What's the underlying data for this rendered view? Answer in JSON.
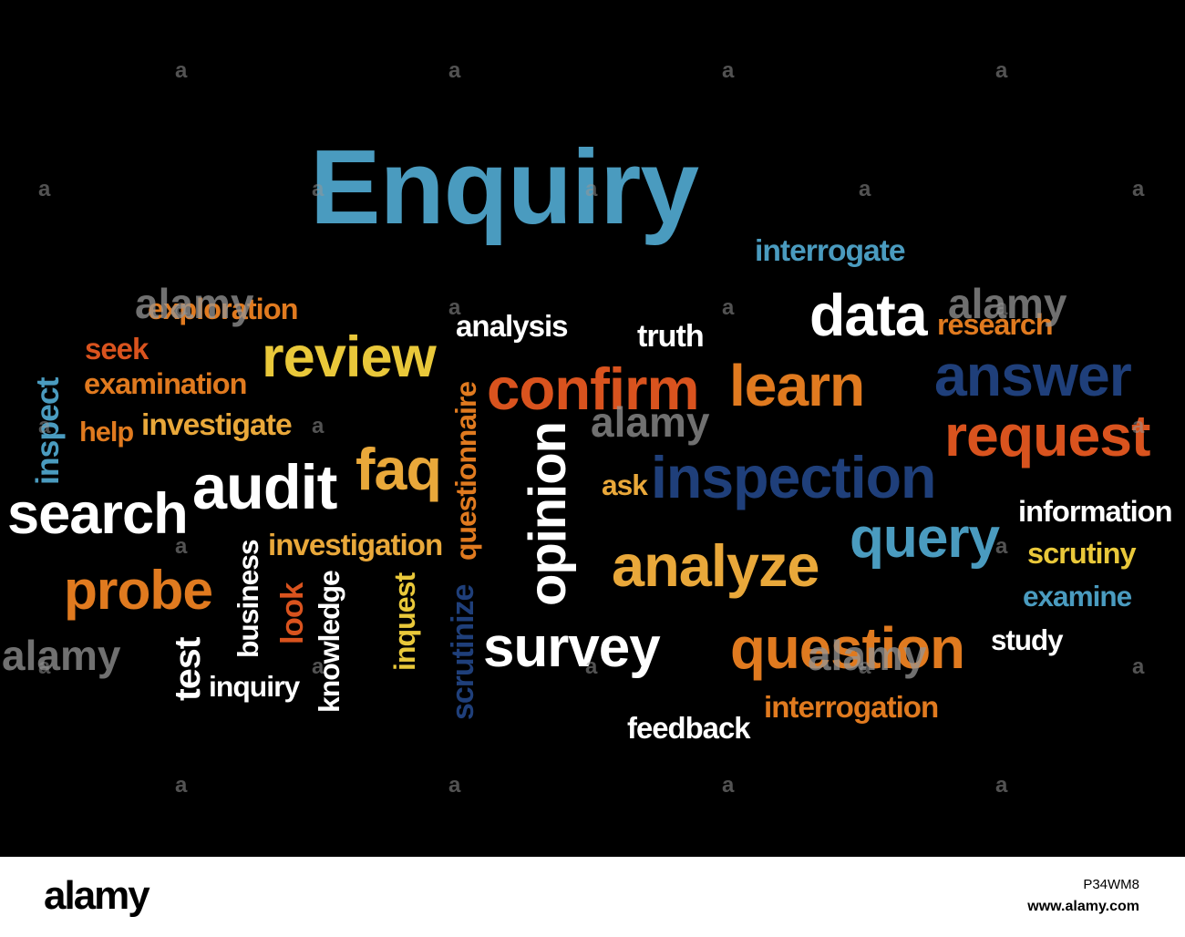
{
  "words": [
    {
      "text": "Enquiry",
      "color": "#4a9bbf"
    },
    {
      "text": "interrogate",
      "color": "#4a9bbf"
    },
    {
      "text": "exploration",
      "color": "#e07a1f"
    },
    {
      "text": "analysis",
      "color": "#ffffff"
    },
    {
      "text": "truth",
      "color": "#ffffff"
    },
    {
      "text": "data",
      "color": "#ffffff"
    },
    {
      "text": "research",
      "color": "#e07a1f"
    },
    {
      "text": "seek",
      "color": "#d9531e"
    },
    {
      "text": "review",
      "color": "#e9c83a"
    },
    {
      "text": "examination",
      "color": "#e07a1f"
    },
    {
      "text": "confirm",
      "color": "#d9531e"
    },
    {
      "text": "learn",
      "color": "#e07a1f"
    },
    {
      "text": "answer",
      "color": "#1f3f7a"
    },
    {
      "text": "inspect",
      "color": "#4a9bbf"
    },
    {
      "text": "help",
      "color": "#e07a1f"
    },
    {
      "text": "investigate",
      "color": "#e9a83a"
    },
    {
      "text": "request",
      "color": "#d9531e"
    },
    {
      "text": "faq",
      "color": "#e9a83a"
    },
    {
      "text": "questionnaire",
      "color": "#e07a1f"
    },
    {
      "text": "opinion",
      "color": "#ffffff"
    },
    {
      "text": "audit",
      "color": "#ffffff"
    },
    {
      "text": "search",
      "color": "#ffffff"
    },
    {
      "text": "ask",
      "color": "#e9a83a"
    },
    {
      "text": "inspection",
      "color": "#1f3f7a"
    },
    {
      "text": "information",
      "color": "#ffffff"
    },
    {
      "text": "investigation",
      "color": "#e9a83a"
    },
    {
      "text": "query",
      "color": "#4a9bbf"
    },
    {
      "text": "scrutiny",
      "color": "#e9c83a"
    },
    {
      "text": "business",
      "color": "#ffffff"
    },
    {
      "text": "analyze",
      "color": "#e9a83a"
    },
    {
      "text": "probe",
      "color": "#e07a1f"
    },
    {
      "text": "examine",
      "color": "#4a9bbf"
    },
    {
      "text": "look",
      "color": "#d9531e"
    },
    {
      "text": "knowledge",
      "color": "#ffffff"
    },
    {
      "text": "inquest",
      "color": "#e9c83a"
    },
    {
      "text": "scrutinize",
      "color": "#1f3f7a"
    },
    {
      "text": "survey",
      "color": "#ffffff"
    },
    {
      "text": "question",
      "color": "#e07a1f"
    },
    {
      "text": "study",
      "color": "#ffffff"
    },
    {
      "text": "test",
      "color": "#ffffff"
    },
    {
      "text": "inquiry",
      "color": "#ffffff"
    },
    {
      "text": "feedback",
      "color": "#ffffff"
    },
    {
      "text": "interrogation",
      "color": "#e07a1f"
    }
  ],
  "watermark": {
    "text": "alamy",
    "mark": "a"
  },
  "footer": {
    "logo": "alamy",
    "image_id": "P34WM8",
    "url": "www.alamy.com"
  }
}
